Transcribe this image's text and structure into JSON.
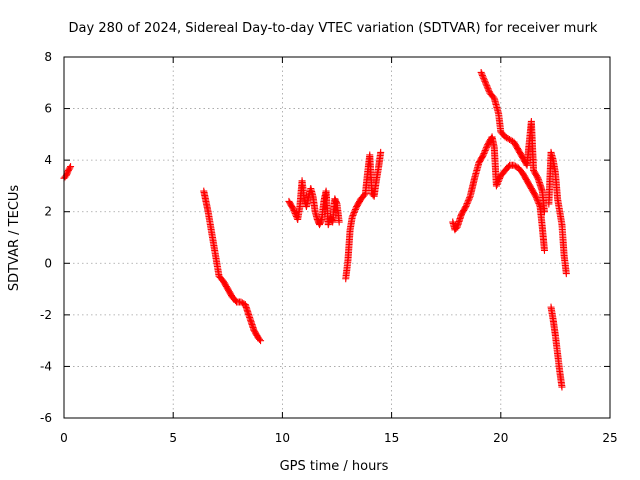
{
  "chart_data": {
    "type": "scatter",
    "title": "Day 280 of 2024, Sidereal Day-to-day VTEC variation (SDTVAR) for receiver murk",
    "xlabel": "GPS time / hours",
    "ylabel": "SDTVAR / TECUs",
    "xlim": [
      0,
      25
    ],
    "ylim": [
      -6,
      8
    ],
    "xticks": [
      0,
      5,
      10,
      15,
      20,
      25
    ],
    "yticks": [
      -6,
      -4,
      -2,
      0,
      2,
      4,
      6,
      8
    ],
    "grid": true,
    "marker": "+",
    "series": [
      {
        "name": "SDTVAR",
        "color": "#ff0000",
        "segments": [
          [
            [
              0.0,
              3.3
            ],
            [
              0.1,
              3.4
            ],
            [
              0.2,
              3.6
            ],
            [
              0.3,
              3.75
            ]
          ],
          [
            [
              6.4,
              2.8
            ],
            [
              6.5,
              2.4
            ],
            [
              6.6,
              2.0
            ],
            [
              6.7,
              1.5
            ],
            [
              6.8,
              1.0
            ],
            [
              6.9,
              0.5
            ],
            [
              7.0,
              0.0
            ],
            [
              7.1,
              -0.5
            ],
            [
              7.3,
              -0.7
            ],
            [
              7.5,
              -1.0
            ],
            [
              7.7,
              -1.3
            ],
            [
              7.9,
              -1.5
            ],
            [
              8.1,
              -1.5
            ],
            [
              8.3,
              -1.6
            ],
            [
              8.5,
              -2.1
            ],
            [
              8.7,
              -2.6
            ],
            [
              8.9,
              -2.9
            ],
            [
              9.0,
              -3.0
            ]
          ],
          [
            [
              10.3,
              2.4
            ],
            [
              10.5,
              2.1
            ],
            [
              10.7,
              1.7
            ],
            [
              10.8,
              2.2
            ],
            [
              10.9,
              3.2
            ],
            [
              11.0,
              2.5
            ],
            [
              11.1,
              2.2
            ],
            [
              11.2,
              2.6
            ],
            [
              11.3,
              2.9
            ],
            [
              11.4,
              2.6
            ],
            [
              11.5,
              2.0
            ],
            [
              11.6,
              1.7
            ],
            [
              11.7,
              1.5
            ],
            [
              11.8,
              1.7
            ],
            [
              11.9,
              2.4
            ],
            [
              12.0,
              2.8
            ],
            [
              12.1,
              1.5
            ],
            [
              12.2,
              1.8
            ],
            [
              12.3,
              1.6
            ],
            [
              12.4,
              2.5
            ],
            [
              12.5,
              2.3
            ],
            [
              12.6,
              1.6
            ]
          ],
          [
            [
              12.9,
              -0.6
            ],
            [
              13.0,
              0.1
            ],
            [
              13.1,
              1.3
            ],
            [
              13.2,
              1.8
            ],
            [
              13.4,
              2.2
            ],
            [
              13.6,
              2.5
            ],
            [
              13.8,
              2.7
            ],
            [
              13.9,
              3.5
            ],
            [
              14.0,
              4.2
            ],
            [
              14.1,
              2.7
            ],
            [
              14.2,
              2.6
            ],
            [
              14.3,
              3.2
            ],
            [
              14.4,
              3.7
            ],
            [
              14.5,
              4.3
            ]
          ],
          [
            [
              17.8,
              1.6
            ],
            [
              17.9,
              1.3
            ],
            [
              18.0,
              1.4
            ],
            [
              18.2,
              1.9
            ],
            [
              18.4,
              2.2
            ],
            [
              18.6,
              2.6
            ],
            [
              18.8,
              3.3
            ],
            [
              19.0,
              3.9
            ],
            [
              19.2,
              4.2
            ],
            [
              19.4,
              4.6
            ],
            [
              19.6,
              4.9
            ],
            [
              19.7,
              4.5
            ],
            [
              19.8,
              3.0
            ],
            [
              20.0,
              3.4
            ],
            [
              20.2,
              3.6
            ],
            [
              20.4,
              3.8
            ],
            [
              20.6,
              3.8
            ],
            [
              20.8,
              3.7
            ],
            [
              21.0,
              3.5
            ],
            [
              21.2,
              3.2
            ],
            [
              21.4,
              2.9
            ],
            [
              21.6,
              2.6
            ],
            [
              21.8,
              2.2
            ],
            [
              21.9,
              1.4
            ],
            [
              22.0,
              0.5
            ]
          ],
          [
            [
              19.1,
              7.4
            ],
            [
              19.3,
              7.0
            ],
            [
              19.5,
              6.6
            ],
            [
              19.7,
              6.4
            ],
            [
              19.9,
              5.8
            ],
            [
              20.0,
              5.1
            ],
            [
              20.2,
              4.9
            ],
            [
              20.4,
              4.8
            ],
            [
              20.6,
              4.7
            ],
            [
              20.8,
              4.4
            ],
            [
              21.0,
              4.1
            ],
            [
              21.2,
              3.8
            ],
            [
              21.4,
              5.5
            ],
            [
              21.5,
              3.6
            ],
            [
              21.7,
              3.3
            ],
            [
              21.9,
              2.8
            ],
            [
              22.0,
              2.0
            ]
          ],
          [
            [
              22.2,
              2.3
            ],
            [
              22.3,
              4.3
            ],
            [
              22.4,
              4.0
            ],
            [
              22.5,
              3.5
            ],
            [
              22.6,
              2.5
            ],
            [
              22.7,
              2.0
            ],
            [
              22.8,
              1.5
            ],
            [
              22.9,
              0.3
            ],
            [
              23.0,
              -0.4
            ]
          ],
          [
            [
              22.3,
              -1.7
            ],
            [
              22.4,
              -2.2
            ],
            [
              22.5,
              -2.8
            ],
            [
              22.6,
              -3.5
            ],
            [
              22.7,
              -4.2
            ],
            [
              22.8,
              -4.8
            ]
          ]
        ]
      }
    ]
  }
}
